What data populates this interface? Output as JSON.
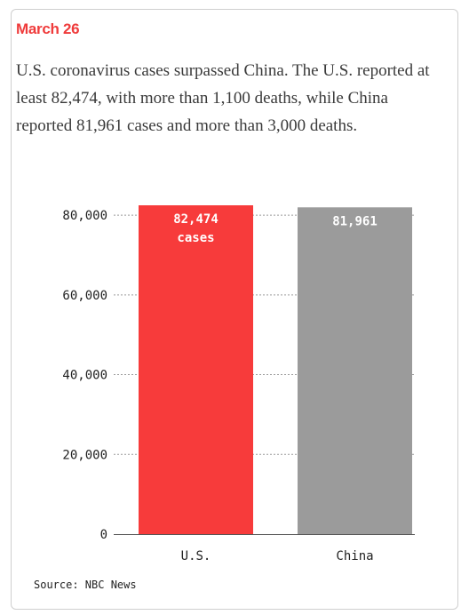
{
  "date": "March 26",
  "description": "U.S. coronavirus cases surpassed China. The U.S. reported at least 82,474, with more than 1,100 deaths, while China reported 81,961 cases and more than 3,000 deaths.",
  "source": "Source: NBC News",
  "colors": {
    "us": "#f73b3b",
    "china": "#9b9b9b",
    "date": "#ef3b3b"
  },
  "chart_data": {
    "type": "bar",
    "categories": [
      "U.S.",
      "China"
    ],
    "values": [
      82474,
      81961
    ],
    "data_labels": [
      [
        "82,474",
        "cases"
      ],
      [
        "81,961"
      ]
    ],
    "yticks": [
      0,
      20000,
      40000,
      60000,
      80000
    ],
    "ytick_labels": [
      "0",
      "20,000",
      "40,000",
      "60,000",
      "80,000"
    ],
    "ylim": [
      0,
      82474
    ],
    "grid": true,
    "title": "",
    "xlabel": "",
    "ylabel": ""
  }
}
